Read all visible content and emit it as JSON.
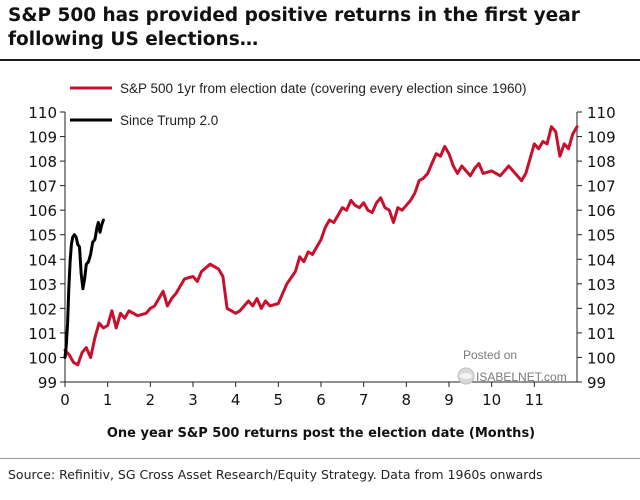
{
  "header": {
    "title": "S&P 500 has provided positive returns in the first year following US elections…"
  },
  "footer": {
    "source": "Source: Refinitiv, SG Cross Asset Research/Equity Strategy. Data from 1960s onwards"
  },
  "watermark": {
    "line1": "Posted on",
    "line2": "ISABELNET.com"
  },
  "colors": {
    "series_1": "#c8102e",
    "series_2": "#000000"
  },
  "chart_data": {
    "type": "line",
    "title": "S&P 500 has provided positive returns in the first year following US elections…",
    "xlabel": "One year S&P 500 returns post the election date (Months)",
    "ylabel": "",
    "xlim": [
      0,
      12
    ],
    "ylim": [
      99,
      110
    ],
    "xticks": [
      0,
      1,
      2,
      3,
      4,
      5,
      6,
      7,
      8,
      9,
      10,
      11
    ],
    "yticks": [
      99,
      100,
      101,
      102,
      103,
      104,
      105,
      106,
      107,
      108,
      109,
      110
    ],
    "legend": "top-left",
    "grid": false,
    "series": [
      {
        "name": "S&P 500 1yr from election date (covering every election since 1960)",
        "color": "#c8102e",
        "x": [
          0,
          0.1,
          0.2,
          0.3,
          0.4,
          0.5,
          0.6,
          0.7,
          0.8,
          0.9,
          1.0,
          1.1,
          1.2,
          1.3,
          1.4,
          1.5,
          1.7,
          1.9,
          2.0,
          2.1,
          2.3,
          2.4,
          2.5,
          2.6,
          2.8,
          3.0,
          3.1,
          3.2,
          3.4,
          3.5,
          3.6,
          3.7,
          3.8,
          4.0,
          4.1,
          4.2,
          4.3,
          4.4,
          4.5,
          4.6,
          4.7,
          4.8,
          5.0,
          5.2,
          5.4,
          5.5,
          5.6,
          5.7,
          5.8,
          5.9,
          6.0,
          6.1,
          6.2,
          6.3,
          6.4,
          6.5,
          6.6,
          6.7,
          6.8,
          6.9,
          7.0,
          7.1,
          7.2,
          7.3,
          7.4,
          7.5,
          7.6,
          7.7,
          7.8,
          7.9,
          8.0,
          8.1,
          8.2,
          8.3,
          8.4,
          8.5,
          8.6,
          8.7,
          8.8,
          8.9,
          9.0,
          9.1,
          9.2,
          9.3,
          9.4,
          9.5,
          9.6,
          9.7,
          9.8,
          10.0,
          10.2,
          10.4,
          10.5,
          10.6,
          10.7,
          10.8,
          10.9,
          11.0,
          11.1,
          11.2,
          11.3,
          11.4,
          11.5,
          11.6,
          11.7,
          11.8,
          11.9,
          12.0
        ],
        "values": [
          100.3,
          100.1,
          99.8,
          99.7,
          100.2,
          100.4,
          100.0,
          100.8,
          101.4,
          101.2,
          101.3,
          101.9,
          101.2,
          101.8,
          101.6,
          101.9,
          101.7,
          101.8,
          102.0,
          102.1,
          102.7,
          102.1,
          102.4,
          102.6,
          103.2,
          103.3,
          103.1,
          103.5,
          103.8,
          103.7,
          103.6,
          103.3,
          102.0,
          101.8,
          101.9,
          102.1,
          102.3,
          102.1,
          102.4,
          102.0,
          102.3,
          102.1,
          102.2,
          103.0,
          103.5,
          104.1,
          103.9,
          104.3,
          104.2,
          104.5,
          104.8,
          105.3,
          105.6,
          105.5,
          105.8,
          106.1,
          106.0,
          106.4,
          106.2,
          106.1,
          106.3,
          106.0,
          105.9,
          106.3,
          106.5,
          106.1,
          106.0,
          105.5,
          106.1,
          106.0,
          106.2,
          106.4,
          106.7,
          107.2,
          107.3,
          107.5,
          107.9,
          108.3,
          108.2,
          108.6,
          108.3,
          107.8,
          107.5,
          107.8,
          107.6,
          107.4,
          107.7,
          107.9,
          107.5,
          107.6,
          107.4,
          107.8,
          107.6,
          107.4,
          107.2,
          107.5,
          108.1,
          108.7,
          108.5,
          108.8,
          108.7,
          109.4,
          109.2,
          108.2,
          108.7,
          108.5,
          109.1,
          109.4
        ]
      },
      {
        "name": "Since Trump 2.0",
        "color": "#000000",
        "x": [
          0,
          0.03,
          0.06,
          0.09,
          0.12,
          0.15,
          0.18,
          0.22,
          0.26,
          0.3,
          0.34,
          0.38,
          0.42,
          0.46,
          0.5,
          0.55,
          0.6,
          0.65,
          0.7,
          0.75,
          0.78,
          0.82,
          0.86,
          0.9
        ],
        "values": [
          100.0,
          100.5,
          101.4,
          102.8,
          103.9,
          104.6,
          104.9,
          105.0,
          104.9,
          104.6,
          104.5,
          103.4,
          102.8,
          103.2,
          103.8,
          103.9,
          104.2,
          104.7,
          104.8,
          105.3,
          105.5,
          105.1,
          105.4,
          105.6
        ]
      }
    ]
  }
}
